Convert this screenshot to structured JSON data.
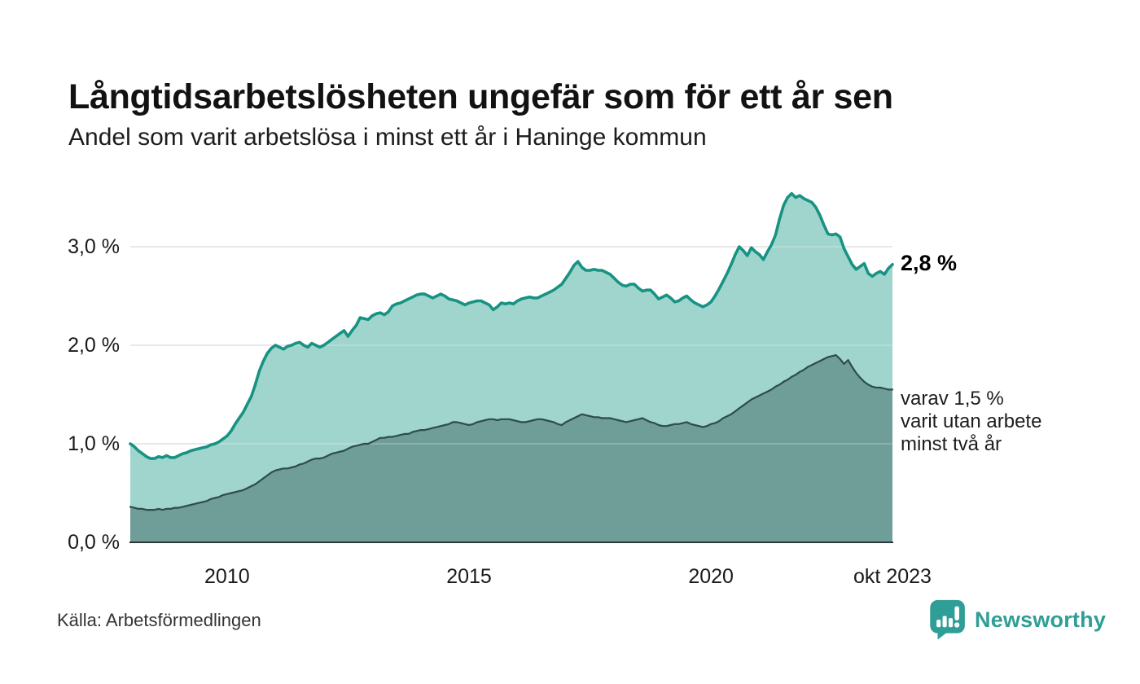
{
  "header": {
    "title": "Långtidsarbetslösheten ungefär som för ett år sen",
    "subtitle": "Andel som varit arbetslösa i minst ett år i Haninge kommun"
  },
  "annotations": {
    "latest": "2,8 %",
    "secondary_line1": "varav 1,5 %",
    "secondary_line2": "varit utan arbete",
    "secondary_line3": "minst två år"
  },
  "footer": {
    "source": "Källa: Arbetsförmedlingen",
    "brand": "Newsworthy"
  },
  "colors": {
    "accent_teal": "#179283",
    "light_fill": "#a0d5cd",
    "dark_fill": "#6f9d97",
    "dark_line": "#2e4d49",
    "gridline": "#d9d9d9",
    "baseline": "#2f3434",
    "brand_teal": "#2f9e96"
  },
  "chart_data": {
    "type": "area",
    "title": "Långtidsarbetslösheten ungefär som för ett år sen",
    "subtitle": "Andel som varit arbetslösa i minst ett år i Haninge kommun",
    "source": "Källa: Arbetsförmedlingen",
    "unit": "%",
    "xlabel": "",
    "ylabel": "",
    "grid": true,
    "xlim": [
      2008.0,
      2023.75
    ],
    "ylim": [
      0,
      3.6
    ],
    "x_start": 2008.0,
    "step_months": 1,
    "x_ticks": [
      {
        "x": 2010.0,
        "label": "2010"
      },
      {
        "x": 2015.0,
        "label": "2015"
      },
      {
        "x": 2020.0,
        "label": "2020"
      },
      {
        "x": 2023.75,
        "label": "okt 2023"
      }
    ],
    "y_ticks": [
      {
        "y": 0,
        "label": "0,0 %"
      },
      {
        "y": 1,
        "label": "1,0 %"
      },
      {
        "y": 2,
        "label": "2,0 %"
      },
      {
        "y": 3,
        "label": "3,0 %"
      }
    ],
    "series": [
      {
        "name": "Andel som varit arbetslösa i minst ett år",
        "end_label": "2,8 %",
        "end_value": 2.8,
        "color": "#179283",
        "fill": "#a0d5cd",
        "stroke_width": 3.6,
        "values": [
          1.0,
          0.97,
          0.93,
          0.9,
          0.87,
          0.85,
          0.85,
          0.87,
          0.86,
          0.88,
          0.86,
          0.86,
          0.88,
          0.9,
          0.91,
          0.93,
          0.94,
          0.95,
          0.96,
          0.97,
          0.99,
          1.0,
          1.02,
          1.05,
          1.08,
          1.13,
          1.2,
          1.26,
          1.32,
          1.4,
          1.48,
          1.6,
          1.74,
          1.84,
          1.92,
          1.97,
          2.0,
          1.98,
          1.96,
          1.99,
          2.0,
          2.02,
          2.03,
          2.0,
          1.98,
          2.02,
          2.0,
          1.98,
          2.0,
          2.03,
          2.06,
          2.09,
          2.12,
          2.15,
          2.09,
          2.15,
          2.2,
          2.28,
          2.27,
          2.26,
          2.3,
          2.32,
          2.33,
          2.31,
          2.34,
          2.4,
          2.42,
          2.43,
          2.45,
          2.47,
          2.49,
          2.51,
          2.52,
          2.52,
          2.5,
          2.48,
          2.5,
          2.52,
          2.5,
          2.47,
          2.46,
          2.45,
          2.43,
          2.41,
          2.43,
          2.44,
          2.45,
          2.45,
          2.43,
          2.41,
          2.36,
          2.39,
          2.43,
          2.42,
          2.43,
          2.42,
          2.45,
          2.47,
          2.48,
          2.49,
          2.48,
          2.48,
          2.5,
          2.52,
          2.54,
          2.56,
          2.59,
          2.62,
          2.68,
          2.74,
          2.81,
          2.85,
          2.79,
          2.76,
          2.76,
          2.77,
          2.76,
          2.76,
          2.74,
          2.72,
          2.68,
          2.64,
          2.61,
          2.6,
          2.62,
          2.62,
          2.58,
          2.55,
          2.56,
          2.56,
          2.52,
          2.47,
          2.49,
          2.51,
          2.48,
          2.44,
          2.45,
          2.48,
          2.5,
          2.46,
          2.43,
          2.41,
          2.39,
          2.41,
          2.44,
          2.5,
          2.57,
          2.65,
          2.73,
          2.82,
          2.92,
          3.0,
          2.96,
          2.91,
          2.99,
          2.95,
          2.92,
          2.87,
          2.95,
          3.02,
          3.12,
          3.28,
          3.42,
          3.5,
          3.54,
          3.5,
          3.52,
          3.49,
          3.47,
          3.45,
          3.4,
          3.32,
          3.22,
          3.13,
          3.12,
          3.13,
          3.1,
          2.98,
          2.9,
          2.82,
          2.77,
          2.8,
          2.83,
          2.73,
          2.7,
          2.73,
          2.75,
          2.72,
          2.78,
          2.82
        ]
      },
      {
        "name": "Varav utan arbete i minst två år",
        "end_label": "varav 1,5 % varit utan arbete minst två år",
        "end_value": 1.5,
        "color": "#2e4d49",
        "fill": "#6f9d97",
        "stroke_width": 2.2,
        "values": [
          0.36,
          0.35,
          0.34,
          0.34,
          0.33,
          0.33,
          0.33,
          0.34,
          0.33,
          0.34,
          0.34,
          0.35,
          0.35,
          0.36,
          0.37,
          0.38,
          0.39,
          0.4,
          0.41,
          0.42,
          0.44,
          0.45,
          0.46,
          0.48,
          0.49,
          0.5,
          0.51,
          0.52,
          0.53,
          0.55,
          0.57,
          0.59,
          0.62,
          0.65,
          0.68,
          0.71,
          0.73,
          0.74,
          0.75,
          0.75,
          0.76,
          0.77,
          0.79,
          0.8,
          0.82,
          0.84,
          0.85,
          0.85,
          0.86,
          0.88,
          0.9,
          0.91,
          0.92,
          0.93,
          0.95,
          0.97,
          0.98,
          0.99,
          1.0,
          1.0,
          1.02,
          1.04,
          1.06,
          1.06,
          1.07,
          1.07,
          1.08,
          1.09,
          1.1,
          1.1,
          1.12,
          1.13,
          1.14,
          1.14,
          1.15,
          1.16,
          1.17,
          1.18,
          1.19,
          1.2,
          1.22,
          1.22,
          1.21,
          1.2,
          1.19,
          1.2,
          1.22,
          1.23,
          1.24,
          1.25,
          1.25,
          1.24,
          1.25,
          1.25,
          1.25,
          1.24,
          1.23,
          1.22,
          1.22,
          1.23,
          1.24,
          1.25,
          1.25,
          1.24,
          1.23,
          1.22,
          1.2,
          1.19,
          1.22,
          1.24,
          1.26,
          1.28,
          1.3,
          1.29,
          1.28,
          1.27,
          1.27,
          1.26,
          1.26,
          1.26,
          1.25,
          1.24,
          1.23,
          1.22,
          1.23,
          1.24,
          1.25,
          1.26,
          1.24,
          1.22,
          1.21,
          1.19,
          1.18,
          1.18,
          1.19,
          1.2,
          1.2,
          1.21,
          1.22,
          1.2,
          1.19,
          1.18,
          1.17,
          1.18,
          1.2,
          1.21,
          1.23,
          1.26,
          1.28,
          1.3,
          1.33,
          1.36,
          1.39,
          1.42,
          1.45,
          1.47,
          1.49,
          1.51,
          1.53,
          1.55,
          1.58,
          1.6,
          1.63,
          1.65,
          1.68,
          1.7,
          1.73,
          1.75,
          1.78,
          1.8,
          1.82,
          1.84,
          1.86,
          1.88,
          1.89,
          1.9,
          1.86,
          1.81,
          1.85,
          1.78,
          1.72,
          1.67,
          1.63,
          1.6,
          1.58,
          1.57,
          1.57,
          1.56,
          1.55,
          1.55
        ]
      }
    ]
  }
}
